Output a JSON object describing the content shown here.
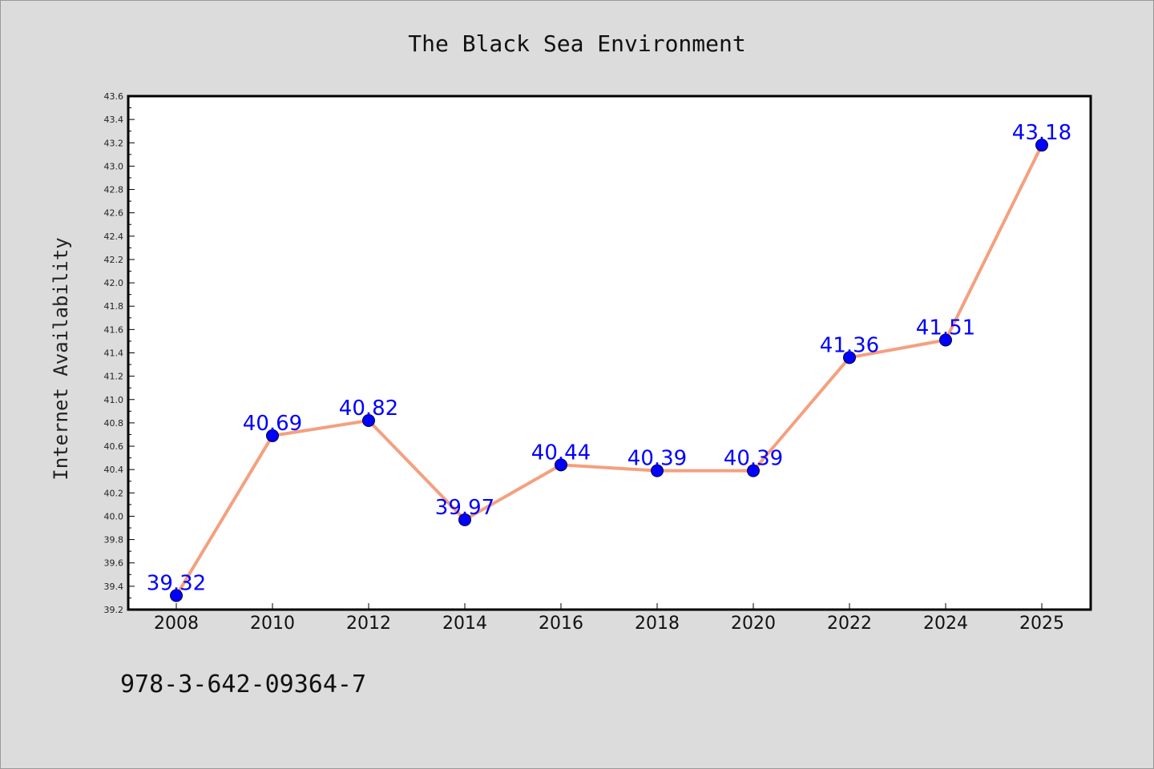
{
  "chart_data": {
    "type": "line",
    "title": "The Black Sea Environment",
    "xlabel": "",
    "ylabel": "Internet Availability",
    "categories": [
      "2008",
      "2010",
      "2012",
      "2014",
      "2016",
      "2018",
      "2020",
      "2022",
      "2024",
      "2025"
    ],
    "series": [
      {
        "values": [
          39.32,
          40.69,
          40.82,
          39.97,
          40.44,
          40.39,
          40.39,
          41.36,
          41.51,
          43.18
        ],
        "labels": [
          "39.32",
          "40.69",
          "40.82",
          "39.97",
          "40.44",
          "40.39",
          "40.39",
          "41.36",
          "41.51",
          "43.18"
        ],
        "line_color": "#f4a07f",
        "marker_color": "#0000ff"
      }
    ],
    "ylim": [
      39.2,
      43.6
    ],
    "yticks": [
      "39.2",
      "39.4",
      "39.6",
      "39.8",
      "40.0",
      "40.2",
      "40.4",
      "40.6",
      "40.8",
      "41.0",
      "41.2",
      "41.4",
      "41.6",
      "41.8",
      "42.0",
      "42.2",
      "42.4",
      "42.6",
      "42.8",
      "43.0",
      "43.2",
      "43.4",
      "43.6"
    ],
    "grid": false,
    "legend": "none"
  },
  "footer": {
    "code": "978-3-642-09364-7"
  }
}
